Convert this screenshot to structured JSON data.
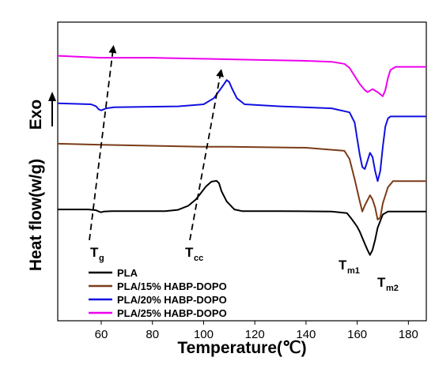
{
  "chart_data": {
    "type": "line",
    "xlabel": "Temperature(℃)",
    "ylabel": "Heat flow(w/g)",
    "xlim": [
      43,
      187
    ],
    "xticks": [
      60,
      80,
      100,
      120,
      140,
      160,
      180
    ],
    "yticks_labeled": false,
    "legend_position": "bottom-left",
    "exo_label": "Exo",
    "series": [
      {
        "name": "PLA",
        "color": "#000000",
        "x": [
          43,
          55,
          58,
          59,
          60,
          61,
          64,
          85,
          90,
          94,
          97,
          99,
          101,
          103,
          105,
          106,
          107,
          109,
          112,
          115,
          130,
          150,
          156,
          158,
          160,
          161,
          162,
          163,
          164,
          165,
          166,
          167,
          168,
          170,
          172,
          187
        ],
        "y": [
          0.1,
          0.1,
          0.06,
          0.0,
          -0.04,
          0.0,
          0.02,
          0.02,
          0.08,
          0.28,
          0.6,
          0.92,
          1.25,
          1.47,
          1.52,
          1.4,
          1.0,
          0.5,
          0.1,
          0.02,
          0.02,
          0.0,
          -0.08,
          -0.4,
          -0.75,
          -1.0,
          -1.3,
          -1.6,
          -1.9,
          -2.15,
          -1.9,
          -1.4,
          -0.8,
          -0.15,
          0.0,
          0.0
        ]
      },
      {
        "name": "PLA/15% HABP-DOPO",
        "color": "#7a3c18",
        "x": [
          43,
          60,
          100,
          110,
          140,
          155,
          157,
          159,
          161,
          162,
          163,
          165,
          166,
          167,
          168,
          169,
          170,
          172,
          174,
          187
        ],
        "y": [
          3.35,
          3.3,
          3.2,
          3.2,
          3.15,
          3.0,
          2.6,
          1.6,
          0.5,
          0.0,
          0.3,
          0.8,
          0.6,
          0.2,
          -0.4,
          -0.3,
          0.4,
          1.2,
          1.5,
          1.5
        ]
      },
      {
        "name": "PLA/20% HABP-DOPO",
        "color": "#1010e0",
        "x": [
          43,
          56,
          58,
          59,
          60,
          62,
          65,
          90,
          100,
          104,
          106,
          108,
          109,
          110,
          111,
          113,
          116,
          130,
          150,
          157,
          159,
          160,
          161,
          162,
          163,
          164,
          165,
          166,
          167,
          168,
          169,
          170,
          171,
          172,
          173,
          187
        ],
        "y": [
          5.35,
          5.3,
          5.2,
          5.05,
          5.0,
          5.1,
          5.15,
          5.2,
          5.3,
          5.6,
          5.95,
          6.3,
          6.5,
          6.4,
          6.1,
          5.6,
          5.3,
          5.2,
          5.1,
          4.9,
          4.4,
          3.6,
          2.8,
          2.2,
          2.1,
          2.5,
          2.9,
          2.7,
          2.0,
          1.5,
          2.0,
          3.2,
          4.2,
          4.6,
          4.7,
          4.7
        ]
      },
      {
        "name": "PLA/25% HABP-DOPO",
        "color": "#ee00ee",
        "x": [
          43,
          60,
          80,
          100,
          120,
          140,
          150,
          155,
          157,
          159,
          161,
          163,
          164,
          166,
          168,
          170,
          171,
          172,
          173,
          175,
          187
        ],
        "y": [
          7.7,
          7.6,
          7.6,
          7.55,
          7.5,
          7.45,
          7.4,
          7.3,
          7.1,
          6.7,
          6.3,
          6.0,
          5.9,
          6.05,
          5.9,
          5.7,
          6.0,
          6.6,
          7.0,
          7.15,
          7.15
        ]
      }
    ],
    "annotations": [
      {
        "main": "T",
        "sub": "g"
      },
      {
        "main": "T",
        "sub": "cc"
      },
      {
        "main": "T",
        "sub": "m1"
      },
      {
        "main": "T",
        "sub": "m2"
      }
    ]
  }
}
